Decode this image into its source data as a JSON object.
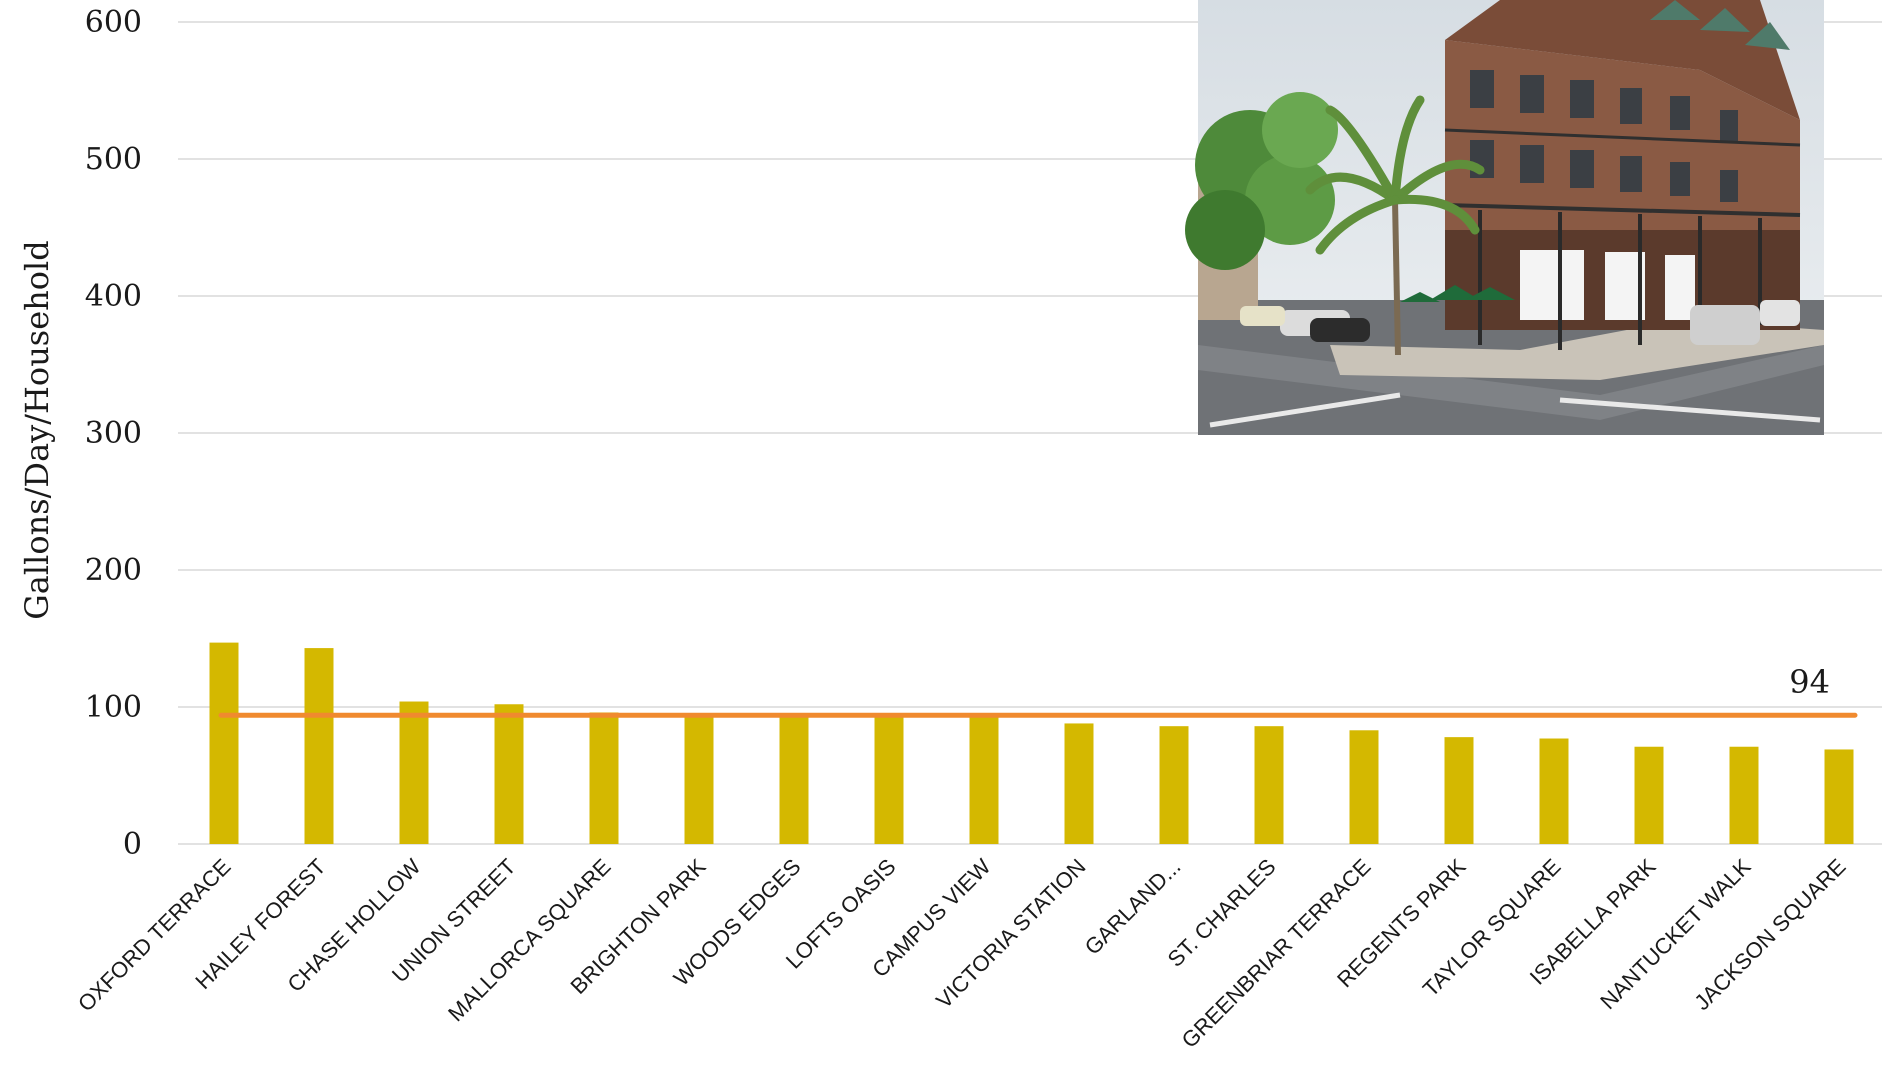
{
  "chart_data": {
    "type": "bar",
    "title": "",
    "xlabel": "",
    "ylabel": "Gallons/Day/Household",
    "ylim": [
      0,
      600
    ],
    "yticks": [
      0,
      100,
      200,
      300,
      400,
      500,
      600
    ],
    "grid": true,
    "categories": [
      "OXFORD TERRACE",
      "HAILEY FOREST",
      "CHASE HOLLOW",
      "UNION STREET",
      "MALLORCA SQUARE",
      "BRIGHTON PARK",
      "WOODS EDGES",
      "LOFTS OASIS",
      "CAMPUS VIEW",
      "VICTORIA STATION",
      "GARLAND...",
      "ST. CHARLES",
      "GREENBRIAR TERRACE",
      "REGENTS PARK",
      "TAYLOR SQUARE",
      "ISABELLA PARK",
      "NANTUCKET WALK",
      "JACKSON SQUARE"
    ],
    "values": [
      147,
      143,
      104,
      102,
      96,
      94,
      94,
      94,
      94,
      88,
      86,
      86,
      83,
      78,
      77,
      71,
      71,
      69
    ],
    "reference_line": {
      "value": 94,
      "label": "94"
    },
    "colors": {
      "bar": "#D4B800",
      "reference_line": "#F08A2E",
      "grid": "#d9d9d9"
    }
  },
  "inset_photo": {
    "subject": "street-corner-building-photo"
  }
}
